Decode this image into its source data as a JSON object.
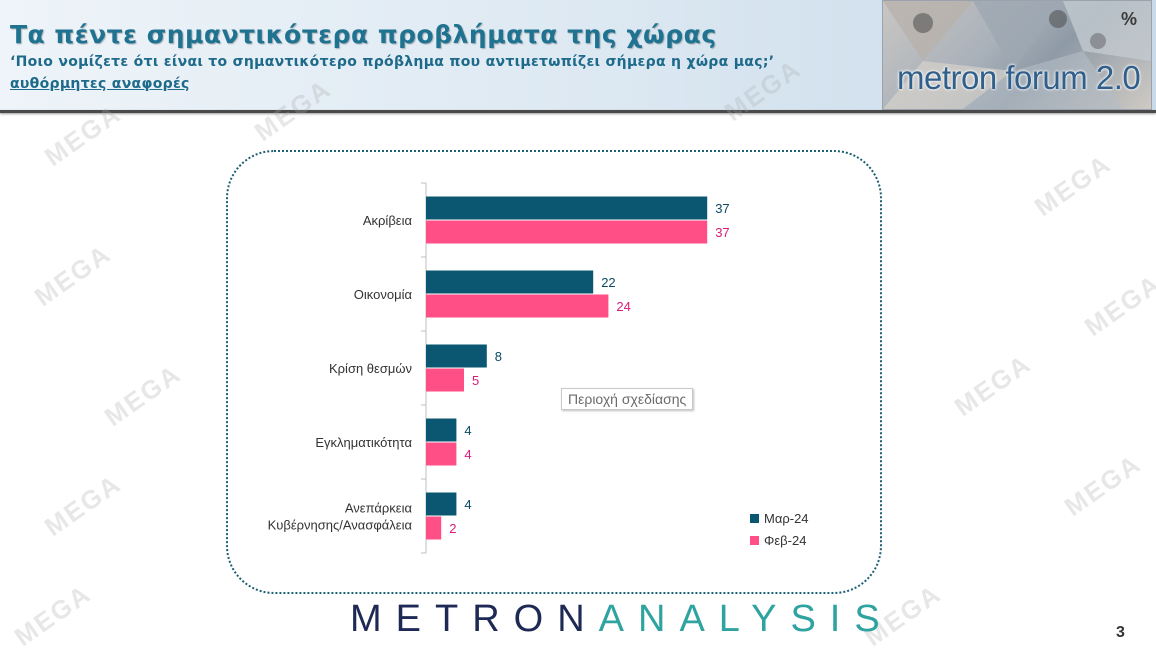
{
  "header": {
    "title": "Τα πέντε σημαντικότερα προβλήματα της χώρας",
    "subtitle": "‘Ποιο νομίζετε ότι είναι το σημαντικότερο πρόβλημα που αντιμετωπίζει σήμερα η χώρα μας;’",
    "subtitle2": "αυθόρμητες αναφορές"
  },
  "logo": {
    "text": "metron forum 2.0",
    "symbol": "%"
  },
  "watermark": "MEGA",
  "plot_area_label": "Περιοχή σχεδίασης",
  "footer": {
    "brand_part1": "METRON",
    "brand_part2": "ANALYSIS",
    "page_number": "3"
  },
  "colors": {
    "mar": "#0b5670",
    "feb": "#ff4f86",
    "feb_label": "#d81b7a",
    "mar_label": "#0b4a63"
  },
  "chart_data": {
    "type": "bar",
    "orientation": "horizontal",
    "categories": [
      "Ακρίβεια",
      "Οικονομία",
      "Κρίση θεσμών",
      "Εγκληματικότητα",
      "Ανεπάρκεια Κυβέρνησης/Ανασφάλεια"
    ],
    "category_lines": [
      [
        "Ακρίβεια"
      ],
      [
        "Οικονομία"
      ],
      [
        "Κρίση θεσμών"
      ],
      [
        "Εγκληματικότητα"
      ],
      [
        "Ανεπάρκεια",
        "Κυβέρνησης/Ανασφάλεια"
      ]
    ],
    "series": [
      {
        "name": "Μαρ-24",
        "values": [
          37,
          22,
          8,
          4,
          4
        ]
      },
      {
        "name": "Φεβ-24",
        "values": [
          37,
          24,
          5,
          4,
          2
        ]
      }
    ],
    "xlim": [
      0,
      40
    ],
    "legend_position": "bottom-right",
    "grid": false
  }
}
